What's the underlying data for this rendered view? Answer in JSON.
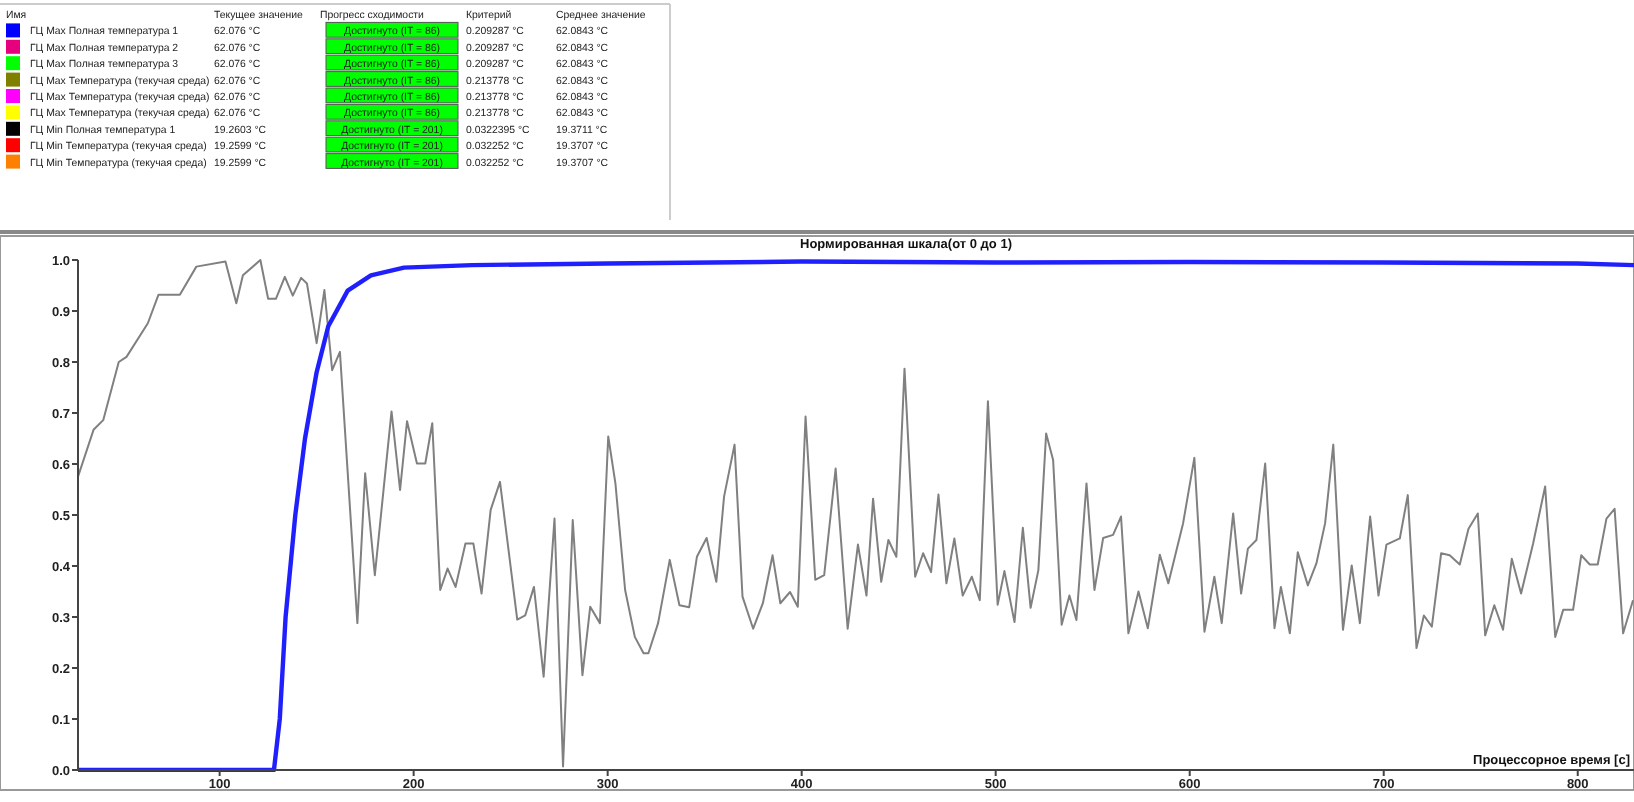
{
  "chart_data": [
    {
      "type": "other",
      "categories": [
        "ГЦ Max Полная температура 1",
        "ГЦ Max Полная температура 2",
        "ГЦ Max Полная температура 3",
        "ГЦ Max Температура (текучая среда)",
        "ГЦ Max Температура (текучая среда)",
        "ГЦ Max Температура (текучая среда)",
        "ГЦ Min Полная температура 1",
        "ГЦ Min Температура (текучая среда)",
        "ГЦ Min Температура (текучая среда)"
      ],
      "colors": [
        "#0000ff",
        "#e6007e",
        "#00ff00",
        "#808000",
        "#ff00ff",
        "#ffff00",
        "#000000",
        "#ff0000",
        "#ff8000"
      ],
      "annotations": [
        "Имя",
        "Текущее значение",
        "Прогресс сходимости",
        "Критерий",
        "Среднее значение",
        "62.076 °C",
        "Достигнуто (IT = 86)",
        "0.209287 °C",
        "62.0843 °C",
        "62.076 °C",
        "Достигнуто (IT = 86)",
        "0.209287 °C",
        "62.0843 °C",
        "62.076 °C",
        "Достигнуто (IT = 86)",
        "0.209287 °C",
        "62.0843 °C",
        "62.076 °C",
        "Достигнуто (IT = 86)",
        "0.213778 °C",
        "62.0843 °C",
        "62.076 °C",
        "Достигнуто (IT = 86)",
        "0.213778 °C",
        "62.0843 °C",
        "62.076 °C",
        "Достигнуто (IT = 86)",
        "0.213778 °C",
        "62.0843 °C",
        "19.2603 °C",
        "Достигнуто (IT = 201)",
        "0.0322395 °C",
        "19.3711 °C",
        "19.2599 °C",
        "Достигнуто (IT = 201)",
        "0.032252 °C",
        "19.3707 °C",
        "19.2599 °C",
        "Достигнуто (IT = 201)",
        "0.032252 °C",
        "19.3707 °C"
      ]
    },
    {
      "type": "line",
      "title": "Нормированная шкала(от 0 до 1)",
      "xlabel": "Процессорное время [с]",
      "xlim": [
        27,
        829
      ],
      "ylim": [
        0,
        1
      ],
      "xticks": [
        100,
        200,
        300,
        400,
        500,
        600,
        700,
        800
      ],
      "yticks": [
        {
          "value": 0,
          "label": "0.0"
        },
        {
          "value": 0.1,
          "label": "0.1"
        },
        {
          "value": 0.2,
          "label": "0.2"
        },
        {
          "value": 0.3,
          "label": "0.3"
        },
        {
          "value": 0.4,
          "label": "0.4"
        },
        {
          "value": 0.5,
          "label": "0.5"
        },
        {
          "value": 0.6,
          "label": "0.6"
        },
        {
          "value": 0.7,
          "label": "0.7"
        },
        {
          "value": 0.8,
          "label": "0.8"
        },
        {
          "value": 0.9,
          "label": "0.9"
        },
        {
          "value": 1,
          "label": "1.0"
        }
      ],
      "grid": false,
      "marker": "none",
      "line_style": "solid",
      "series": [
        {
          "color": "#808080",
          "x": [
            27,
            35,
            40,
            48,
            52,
            63,
            68.5,
            79.5,
            88,
            103,
            108.6,
            112,
            121,
            125,
            129,
            133.6,
            137.7,
            142,
            145,
            150,
            154,
            158,
            162,
            171,
            175,
            180,
            188.6,
            193,
            196.6,
            201.7,
            206,
            209.6,
            213.7,
            217.5,
            221.6,
            226.7,
            230.8,
            235,
            239.7,
            244.5,
            253.4,
            257.5,
            262,
            267,
            272.6,
            277,
            282,
            287,
            291,
            296,
            300.3,
            304,
            309,
            314,
            318.5,
            321,
            326,
            332,
            337,
            342,
            346,
            351,
            356,
            360,
            365.4,
            369.5,
            375,
            380,
            385,
            389,
            394,
            398,
            402,
            407,
            411.6,
            417.5,
            423.7,
            429,
            433.4,
            436.8,
            441,
            444.7,
            448.8,
            453,
            458.5,
            462.6,
            466.7,
            470.5,
            474.6,
            478.7,
            483,
            487.7,
            491.8,
            496,
            501,
            504.5,
            509.7,
            514,
            518,
            522,
            526,
            529.6,
            534,
            538,
            541.6,
            546.8,
            550.9,
            555.4,
            560.5,
            564.6,
            568.4,
            573.6,
            578.4,
            584.6,
            589,
            596.6,
            602.4,
            607.6,
            612.7,
            616.5,
            622.4,
            626.5,
            630,
            634.4,
            638.9,
            643.7,
            647,
            651.6,
            655.7,
            660.9,
            665.3,
            669.8,
            674,
            679,
            683.5,
            687.7,
            693,
            697.3,
            701.4,
            708.3,
            712.4,
            716.9,
            720.7,
            724.8,
            729.6,
            734,
            739.2,
            743.7,
            748.5,
            752.3,
            757,
            761.5,
            766,
            770.8,
            777,
            783.2,
            788.4,
            792.5,
            797.6,
            801.8,
            806.2,
            810.3,
            814.8,
            819,
            823.4,
            828.5
          ],
          "values": [
            0.575,
            0.667,
            0.686,
            0.8,
            0.81,
            0.876,
            0.932,
            0.932,
            0.987,
            0.997,
            0.915,
            0.97,
            1.0,
            0.924,
            0.924,
            0.967,
            0.93,
            0.965,
            0.954,
            0.837,
            0.941,
            0.784,
            0.82,
            0.288,
            0.582,
            0.382,
            0.703,
            0.549,
            0.684,
            0.601,
            0.601,
            0.68,
            0.353,
            0.395,
            0.359,
            0.444,
            0.444,
            0.346,
            0.51,
            0.565,
            0.295,
            0.303,
            0.359,
            0.183,
            0.493,
            0.007,
            0.49,
            0.186,
            0.32,
            0.288,
            0.654,
            0.562,
            0.353,
            0.261,
            0.229,
            0.229,
            0.288,
            0.412,
            0.323,
            0.319,
            0.418,
            0.455,
            0.369,
            0.536,
            0.638,
            0.34,
            0.277,
            0.327,
            0.421,
            0.327,
            0.349,
            0.32,
            0.693,
            0.373,
            0.382,
            0.591,
            0.277,
            0.442,
            0.342,
            0.532,
            0.369,
            0.451,
            0.418,
            0.787,
            0.379,
            0.425,
            0.388,
            0.54,
            0.366,
            0.454,
            0.342,
            0.379,
            0.333,
            0.723,
            0.324,
            0.39,
            0.29,
            0.475,
            0.318,
            0.392,
            0.66,
            0.608,
            0.285,
            0.342,
            0.294,
            0.562,
            0.353,
            0.455,
            0.461,
            0.497,
            0.268,
            0.35,
            0.278,
            0.422,
            0.366,
            0.484,
            0.612,
            0.271,
            0.379,
            0.288,
            0.503,
            0.346,
            0.434,
            0.451,
            0.601,
            0.278,
            0.359,
            0.268,
            0.427,
            0.362,
            0.405,
            0.484,
            0.638,
            0.275,
            0.401,
            0.288,
            0.497,
            0.342,
            0.442,
            0.454,
            0.539,
            0.239,
            0.303,
            0.281,
            0.425,
            0.421,
            0.403,
            0.473,
            0.503,
            0.264,
            0.323,
            0.275,
            0.414,
            0.346,
            0.444,
            0.556,
            0.261,
            0.314,
            0.314,
            0.421,
            0.403,
            0.403,
            0.493,
            0.512,
            0.268,
            0.333
          ]
        },
        {
          "color": "#2020ff",
          "x": [
            27,
            128,
            131,
            134,
            139,
            144,
            150,
            156,
            166,
            178,
            195,
            230,
            300,
            400,
            500,
            600,
            700,
            800,
            829
          ],
          "values": [
            0,
            0,
            0.1,
            0.3,
            0.5,
            0.65,
            0.78,
            0.87,
            0.94,
            0.97,
            0.985,
            0.99,
            0.993,
            0.997,
            0.995,
            0.996,
            0.995,
            0.993,
            0.99
          ]
        }
      ]
    }
  ]
}
